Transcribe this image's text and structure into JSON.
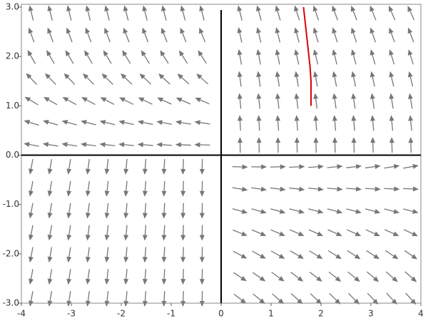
{
  "chart_data": {
    "type": "vector-field",
    "xlim": [
      -4,
      4
    ],
    "ylim": [
      -3,
      3
    ],
    "xticks": [
      -4,
      -3,
      -2,
      -1,
      0,
      1,
      2,
      3,
      4
    ],
    "yticks": [
      {
        "value": -3,
        "label": "-3.0"
      },
      {
        "value": -2,
        "label": "-2.0"
      },
      {
        "value": -1,
        "label": "-1.0"
      },
      {
        "value": 0,
        "label": "0.0"
      },
      {
        "value": 1,
        "label": "1.0"
      },
      {
        "value": 2,
        "label": "2.0"
      },
      {
        "value": 3,
        "label": "3.0"
      }
    ],
    "series": [
      {
        "color": "#dd0000",
        "x": [
          1.8,
          1.8,
          1.78,
          1.65
        ],
        "values": [
          1.0,
          1.5,
          1.8,
          3.0
        ]
      }
    ]
  }
}
